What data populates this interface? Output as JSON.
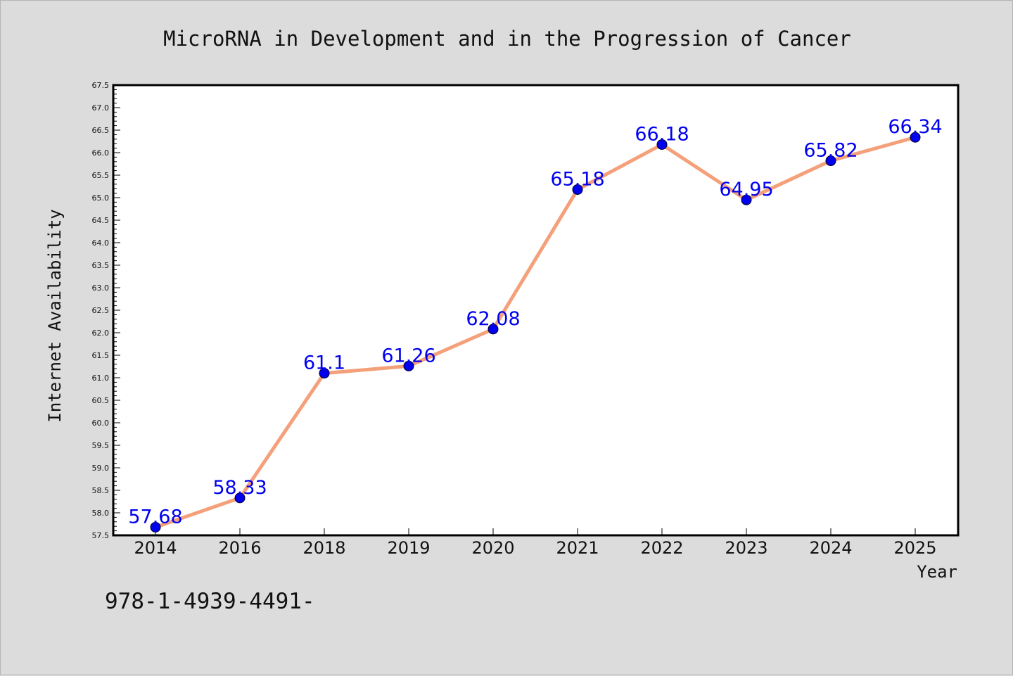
{
  "chart_data": {
    "type": "line",
    "title": "MicroRNA in Development and in the Progression of Cancer",
    "xlabel": "Year",
    "ylabel": "Internet Availability",
    "categories": [
      "2014",
      "2016",
      "2018",
      "2019",
      "2020",
      "2021",
      "2022",
      "2023",
      "2024",
      "2025"
    ],
    "series": [
      {
        "values": [
          57.68,
          58.33,
          61.1,
          61.26,
          62.08,
          65.18,
          66.18,
          64.95,
          65.82,
          66.34
        ],
        "data_labels": [
          "57.68",
          "58.33",
          "61.1",
          "61.26",
          "62.08",
          "65.18",
          "66.18",
          "64.95",
          "65.82",
          "66.34"
        ],
        "line_color": "#f4a07a",
        "marker_color": "#0000ee",
        "label_color": "#0000ee"
      }
    ],
    "ylim": [
      57.5,
      67.5
    ],
    "ytick_step": 0.5,
    "grid": false,
    "legend": "none"
  },
  "footer_text": "978-1-4939-4491-"
}
